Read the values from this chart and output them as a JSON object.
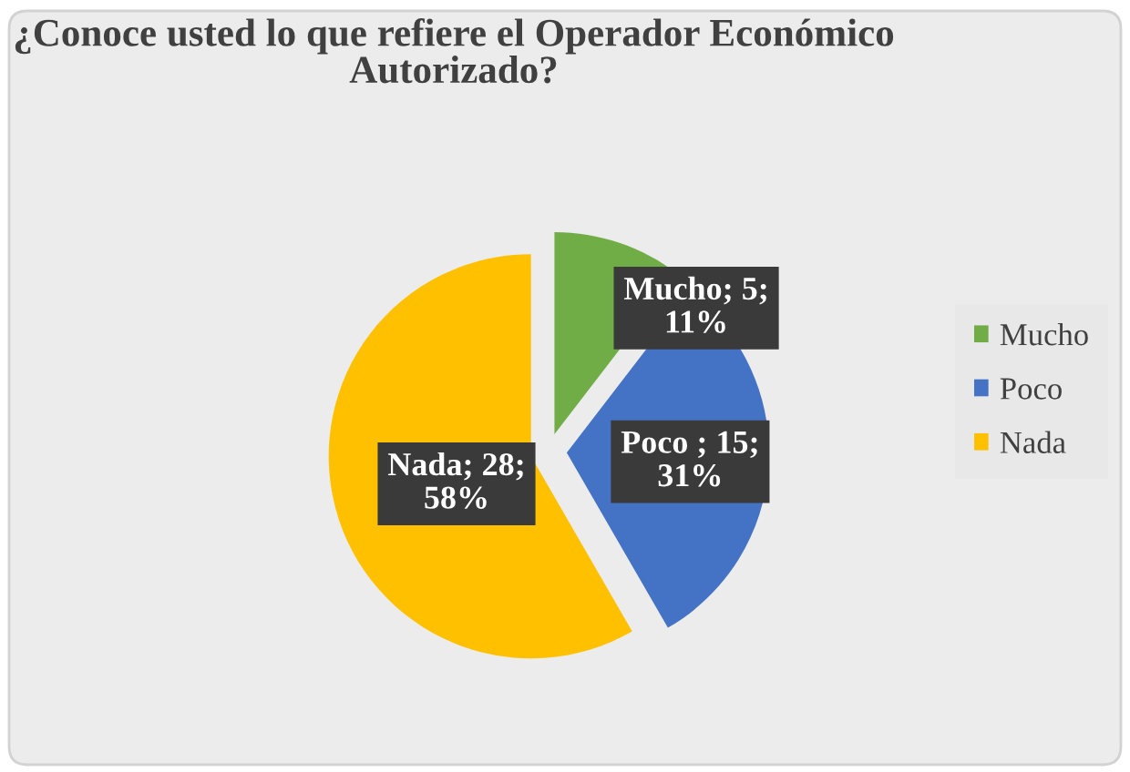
{
  "chart_data": {
    "type": "pie",
    "title": "¿Conoce usted lo que refiere el Operador Económico Autorizado?",
    "categories": [
      "Mucho",
      "Poco",
      "Nada"
    ],
    "values": [
      5,
      15,
      28
    ],
    "colors": [
      "#70ad47",
      "#4472c4",
      "#ffc000"
    ],
    "value_labels": [
      "Mucho; 5; 11%",
      "Poco ; 15; 31%",
      "Nada; 28; 58%"
    ],
    "legend": "right"
  }
}
